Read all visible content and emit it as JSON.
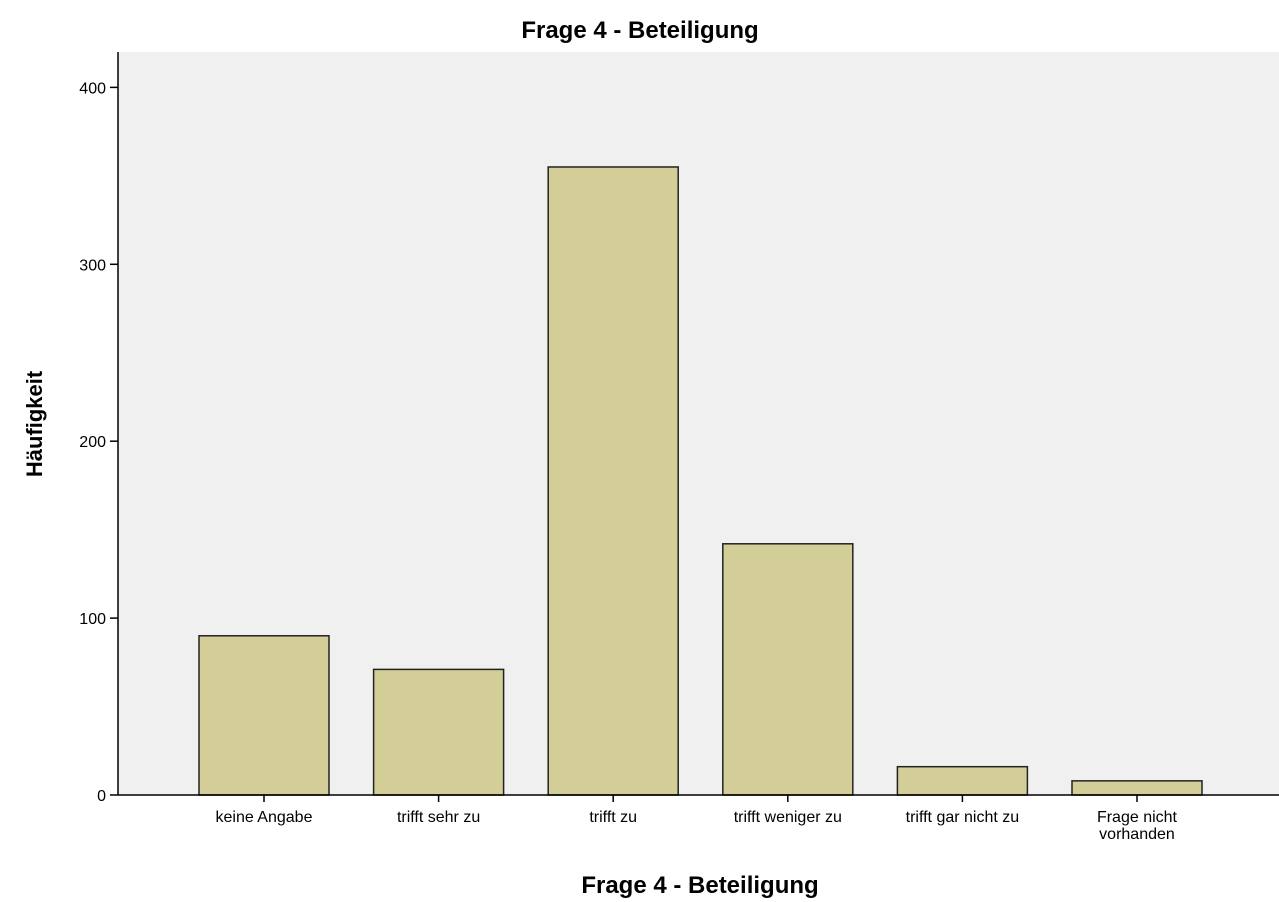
{
  "chart_data": {
    "type": "bar",
    "title": "Frage 4 - Beteiligung",
    "x_label": "Frage 4 - Beteiligung",
    "y_label": "Häufigkeit",
    "categories": [
      "keine Angabe",
      "trifft sehr zu",
      "trifft zu",
      "trifft weniger zu",
      "trifft gar nicht zu",
      "Frage nicht vorhanden"
    ],
    "values": [
      90,
      71,
      355,
      142,
      16,
      8
    ],
    "color": "#d3ce97",
    "ylim": [
      0,
      420
    ],
    "yticks": [
      0,
      100,
      200,
      300,
      400
    ],
    "grid": false
  }
}
